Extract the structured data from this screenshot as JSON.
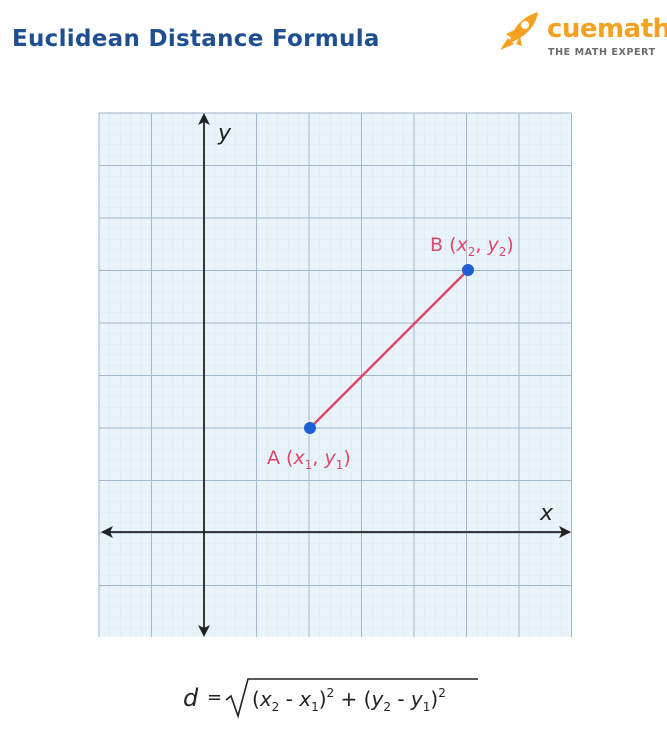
{
  "header": {
    "title": "Euclidean Distance Formula",
    "brand_name": "cuemath",
    "brand_tagline": "THE MATH EXPERT"
  },
  "diagram": {
    "axis_x_label": "x",
    "axis_y_label": "y",
    "point_a": {
      "letter": "A",
      "x_var": "x",
      "x_sub": "1",
      "y_var": "y",
      "y_sub": "1"
    },
    "point_b": {
      "letter": "B",
      "x_var": "x",
      "x_sub": "2",
      "y_var": "y",
      "y_sub": "2"
    },
    "colors": {
      "segment": "#e0476a",
      "points": "#1f5fd6",
      "axis": "#222222",
      "grid_major": "#9fb8cc",
      "grid_minor": "#cfe3ee",
      "grid_bg": "#e9f4fa",
      "title": "#1d4f91",
      "brand": "#f4a020"
    }
  },
  "formula": {
    "lhs": "d",
    "equals": "=",
    "x2": "x",
    "x2_sub": "2",
    "x1": "x",
    "x1_sub": "1",
    "y2": "y",
    "y2_sub": "2",
    "y1": "y",
    "y1_sub": "1",
    "exponent": "2",
    "minus": "-",
    "plus": "+"
  }
}
